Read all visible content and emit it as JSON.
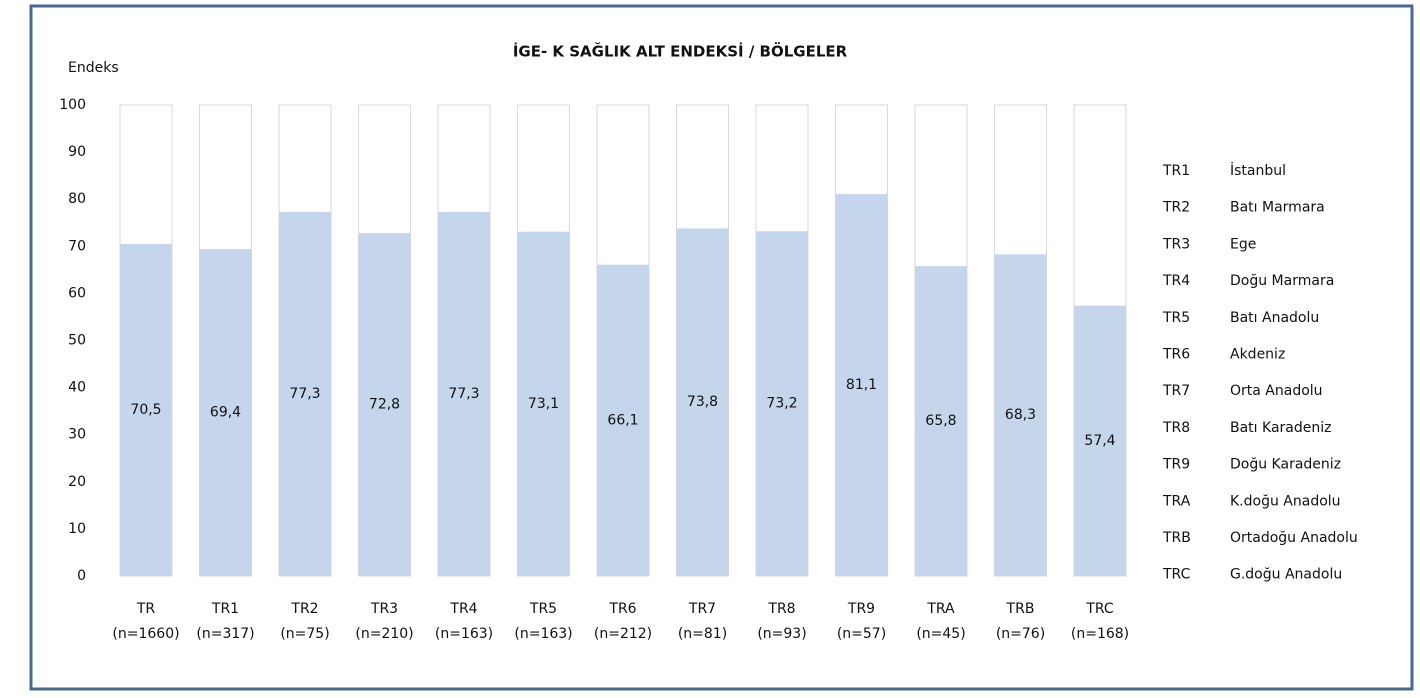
{
  "chart_data": {
    "type": "bar",
    "title": "İGE- K SAĞLIK ALT ENDEKSİ / BÖLGELER",
    "y_axis_label": "Endeks",
    "categories": [
      "TR",
      "TR1",
      "TR2",
      "TR3",
      "TR4",
      "TR5",
      "TR6",
      "TR7",
      "TR8",
      "TR9",
      "TRA",
      "TRB",
      "TRC"
    ],
    "sample_sizes": [
      "(n=1660)",
      "(n=317)",
      "(n=75)",
      "(n=210)",
      "(n=163)",
      "(n=163)",
      "(n=212)",
      "(n=81)",
      "(n=93)",
      "(n=57)",
      "(n=45)",
      "(n=76)",
      "(n=168)"
    ],
    "values": [
      70.5,
      69.4,
      77.3,
      72.8,
      77.3,
      73.1,
      66.1,
      73.8,
      73.2,
      81.1,
      65.8,
      68.3,
      57.4
    ],
    "value_labels": [
      "70,5",
      "69,4",
      "77,3",
      "72,8",
      "77,3",
      "73,1",
      "66,1",
      "73,8",
      "73,2",
      "81,1",
      "65,8",
      "68,3",
      "57,4"
    ],
    "color": "#c5d6ec",
    "ylim": [
      0,
      100
    ],
    "yticks": [
      0,
      10,
      20,
      30,
      40,
      50,
      60,
      70,
      80,
      90,
      100
    ],
    "grid": false,
    "region_legend": [
      {
        "code": "TR1",
        "name": "İstanbul"
      },
      {
        "code": "TR2",
        "name": "Batı Marmara"
      },
      {
        "code": "TR3",
        "name": "Ege"
      },
      {
        "code": "TR4",
        "name": "Doğu Marmara"
      },
      {
        "code": "TR5",
        "name": "Batı Anadolu"
      },
      {
        "code": "TR6",
        "name": "Akdeniz"
      },
      {
        "code": "TR7",
        "name": "Orta Anadolu"
      },
      {
        "code": "TR8",
        "name": "Batı Karadeniz"
      },
      {
        "code": "TR9",
        "name": "Doğu Karadeniz"
      },
      {
        "code": "TRA",
        "name": "K.doğu Anadolu"
      },
      {
        "code": "TRB",
        "name": "Ortadoğu Anadolu"
      },
      {
        "code": "TRC",
        "name": "G.doğu Anadolu"
      }
    ]
  }
}
